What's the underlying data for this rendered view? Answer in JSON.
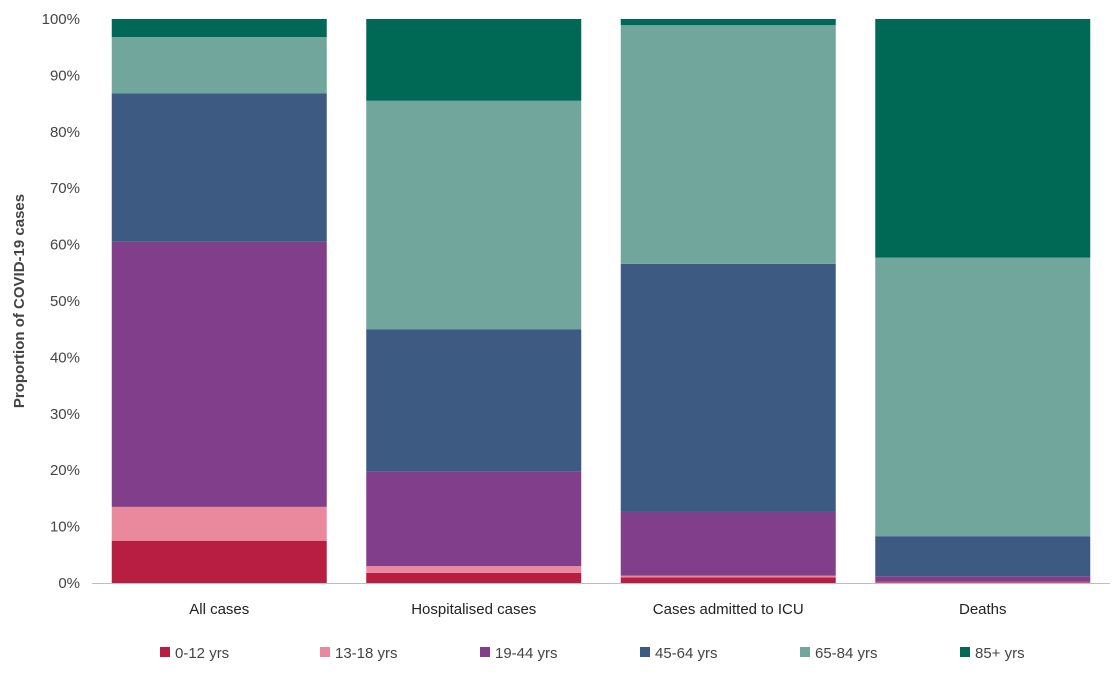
{
  "chart_data": {
    "type": "bar",
    "stacked": true,
    "normalized": true,
    "title": "",
    "xlabel": "",
    "ylabel": "Proportion of COVID-19 cases",
    "ylim": [
      0,
      100
    ],
    "yticks": [
      "0%",
      "10%",
      "20%",
      "30%",
      "40%",
      "50%",
      "60%",
      "70%",
      "80%",
      "90%",
      "100%"
    ],
    "grid": false,
    "legend_position": "bottom",
    "categories": [
      "All cases",
      "Hospitalised cases",
      "Cases admitted to ICU",
      "Deaths"
    ],
    "series": [
      {
        "name": "0-12 yrs",
        "color": "#b81e42",
        "values": [
          7.5,
          1.8,
          1.0,
          0.1
        ]
      },
      {
        "name": "13-18 yrs",
        "color": "#ea889d",
        "values": [
          6.0,
          1.2,
          0.3,
          0.1
        ]
      },
      {
        "name": "19-44 yrs",
        "color": "#813f8b",
        "values": [
          47.0,
          16.8,
          11.3,
          1.0
        ]
      },
      {
        "name": "45-64 yrs",
        "color": "#3d5a82",
        "values": [
          26.3,
          25.2,
          44.0,
          7.1
        ]
      },
      {
        "name": "65-84 yrs",
        "color": "#71a69c",
        "values": [
          10.0,
          40.5,
          42.3,
          49.4
        ]
      },
      {
        "name": "85+ yrs",
        "color": "#006956",
        "values": [
          3.2,
          14.5,
          1.1,
          42.3
        ]
      }
    ]
  }
}
